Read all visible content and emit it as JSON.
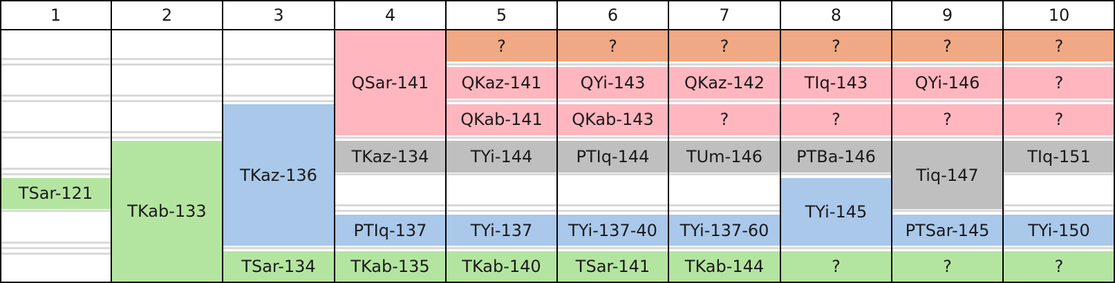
{
  "colors": {
    "question": "#f1a884",
    "q": "#ffb6bf",
    "grey": "#bfbfbf",
    "blue": "#a9c8ea",
    "green": "#b4e5a0"
  },
  "columns": [
    "1",
    "2",
    "3",
    "4",
    "5",
    "6",
    "7",
    "8",
    "9",
    "10"
  ],
  "cells": [
    {
      "col": 0,
      "row": 4,
      "span": 1,
      "color": "green",
      "text": "TSar-121"
    },
    {
      "col": 1,
      "row": 3,
      "span": 4,
      "color": "green",
      "text": "TKab-133"
    },
    {
      "col": 2,
      "row": 2,
      "span": 4,
      "color": "blue",
      "text": "TKaz-136"
    },
    {
      "col": 2,
      "row": 6,
      "span": 1,
      "color": "green",
      "text": "TSar-134"
    },
    {
      "col": 3,
      "row": 0,
      "span": 3,
      "color": "q",
      "text": "QSar-141"
    },
    {
      "col": 3,
      "row": 3,
      "span": 1,
      "color": "grey",
      "text": "TKaz-134"
    },
    {
      "col": 3,
      "row": 5,
      "span": 1,
      "color": "blue",
      "text": "PTIq-137"
    },
    {
      "col": 3,
      "row": 6,
      "span": 1,
      "color": "green",
      "text": "TKab-135"
    },
    {
      "col": 4,
      "row": 0,
      "span": 1,
      "color": "question",
      "text": "?"
    },
    {
      "col": 4,
      "row": 1,
      "span": 1,
      "color": "q",
      "text": "QKaz-141"
    },
    {
      "col": 4,
      "row": 2,
      "span": 1,
      "color": "q",
      "text": "QKab-141"
    },
    {
      "col": 4,
      "row": 3,
      "span": 1,
      "color": "grey",
      "text": "TYi-144"
    },
    {
      "col": 4,
      "row": 5,
      "span": 1,
      "color": "blue",
      "text": "TYi-137"
    },
    {
      "col": 4,
      "row": 6,
      "span": 1,
      "color": "green",
      "text": "TKab-140"
    },
    {
      "col": 5,
      "row": 0,
      "span": 1,
      "color": "question",
      "text": "?"
    },
    {
      "col": 5,
      "row": 1,
      "span": 1,
      "color": "q",
      "text": "QYi-143"
    },
    {
      "col": 5,
      "row": 2,
      "span": 1,
      "color": "q",
      "text": "QKab-143"
    },
    {
      "col": 5,
      "row": 3,
      "span": 1,
      "color": "grey",
      "text": "PTIq-144"
    },
    {
      "col": 5,
      "row": 5,
      "span": 1,
      "color": "blue",
      "text": "TYi-137-40"
    },
    {
      "col": 5,
      "row": 6,
      "span": 1,
      "color": "green",
      "text": "TSar-141"
    },
    {
      "col": 6,
      "row": 0,
      "span": 1,
      "color": "question",
      "text": "?"
    },
    {
      "col": 6,
      "row": 1,
      "span": 1,
      "color": "q",
      "text": "QKaz-142"
    },
    {
      "col": 6,
      "row": 2,
      "span": 1,
      "color": "q",
      "text": "?"
    },
    {
      "col": 6,
      "row": 3,
      "span": 1,
      "color": "grey",
      "text": "TUm-146"
    },
    {
      "col": 6,
      "row": 5,
      "span": 1,
      "color": "blue",
      "text": "TYi-137-60"
    },
    {
      "col": 6,
      "row": 6,
      "span": 1,
      "color": "green",
      "text": "TKab-144"
    },
    {
      "col": 7,
      "row": 0,
      "span": 1,
      "color": "question",
      "text": "?"
    },
    {
      "col": 7,
      "row": 1,
      "span": 1,
      "color": "q",
      "text": "TIq-143"
    },
    {
      "col": 7,
      "row": 2,
      "span": 1,
      "color": "q",
      "text": "?"
    },
    {
      "col": 7,
      "row": 3,
      "span": 1,
      "color": "grey",
      "text": "PTBa-146"
    },
    {
      "col": 7,
      "row": 4,
      "span": 2,
      "color": "blue",
      "text": "TYi-145"
    },
    {
      "col": 7,
      "row": 6,
      "span": 1,
      "color": "green",
      "text": "?"
    },
    {
      "col": 8,
      "row": 0,
      "span": 1,
      "color": "question",
      "text": "?"
    },
    {
      "col": 8,
      "row": 1,
      "span": 1,
      "color": "q",
      "text": "QYi-146"
    },
    {
      "col": 8,
      "row": 2,
      "span": 1,
      "color": "q",
      "text": "?"
    },
    {
      "col": 8,
      "row": 3,
      "span": 2,
      "color": "grey",
      "text": "Tiq-147"
    },
    {
      "col": 8,
      "row": 5,
      "span": 1,
      "color": "blue",
      "text": "PTSar-145"
    },
    {
      "col": 8,
      "row": 6,
      "span": 1,
      "color": "green",
      "text": "?"
    },
    {
      "col": 9,
      "row": 0,
      "span": 1,
      "color": "question",
      "text": "?"
    },
    {
      "col": 9,
      "row": 1,
      "span": 1,
      "color": "q",
      "text": "?"
    },
    {
      "col": 9,
      "row": 2,
      "span": 1,
      "color": "q",
      "text": "?"
    },
    {
      "col": 9,
      "row": 3,
      "span": 1,
      "color": "grey",
      "text": "TIq-151"
    },
    {
      "col": 9,
      "row": 5,
      "span": 1,
      "color": "blue",
      "text": "TYi-150"
    },
    {
      "col": 9,
      "row": 6,
      "span": 1,
      "color": "green",
      "text": "?"
    }
  ]
}
